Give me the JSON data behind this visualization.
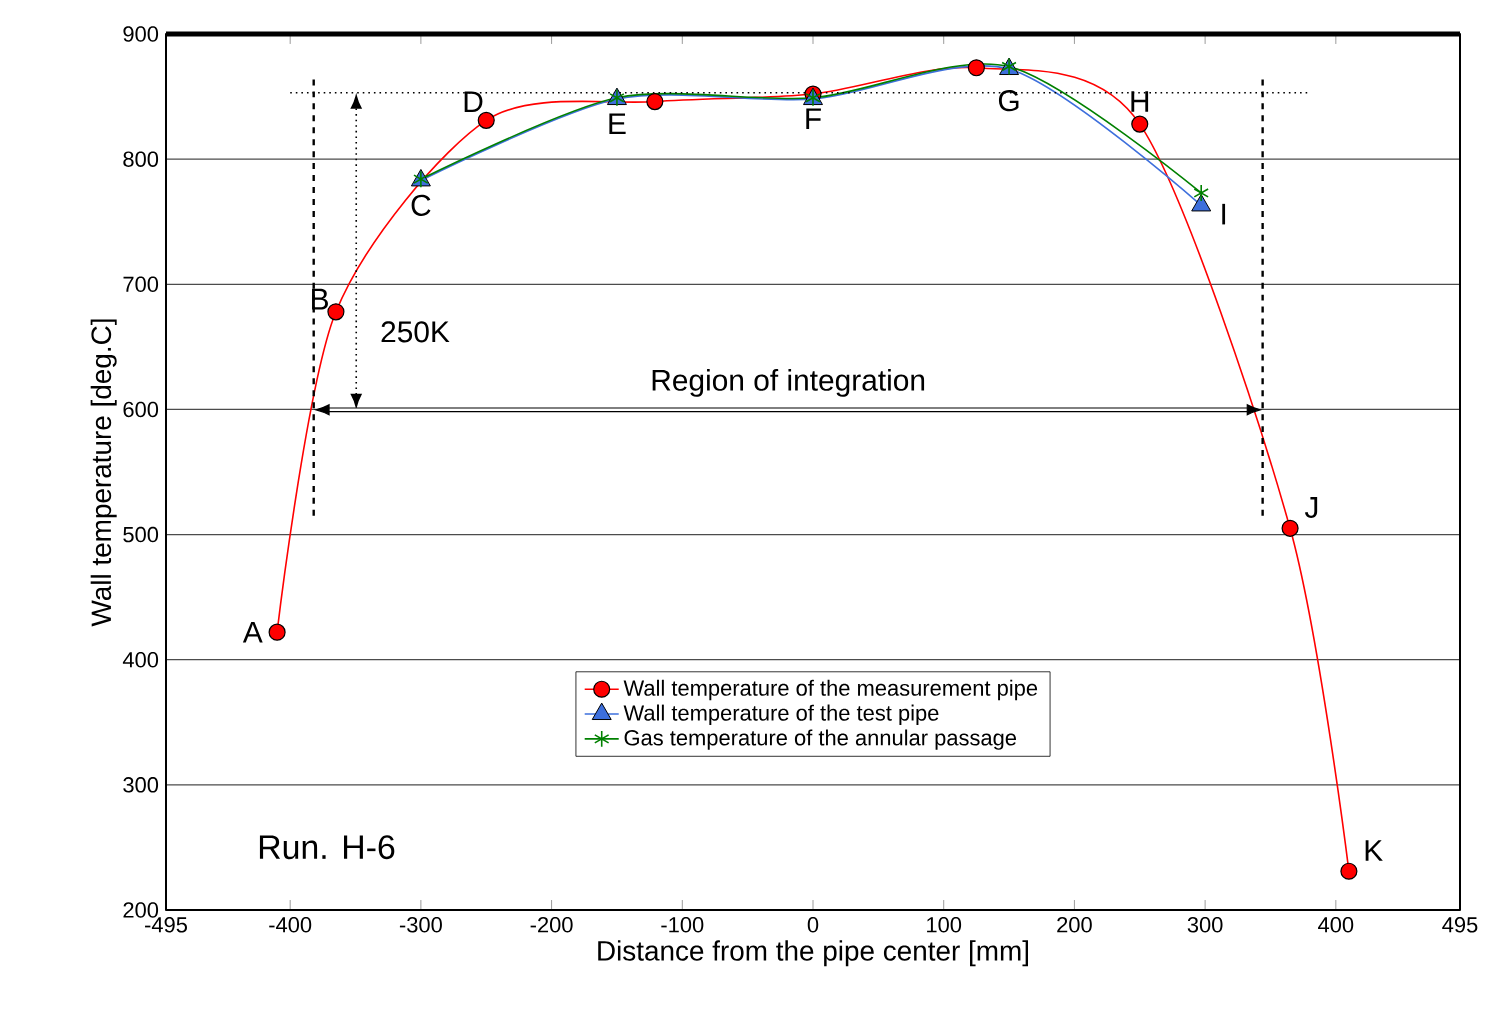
{
  "chart_data": {
    "type": "line",
    "xlabel": "Distance from the pipe center [mm]",
    "ylabel": "Wall temperature [deg.C]",
    "xlim": [
      -495,
      495
    ],
    "ylim": [
      200,
      900
    ],
    "xticks": [
      -495,
      -400,
      -300,
      -200,
      -100,
      0,
      100,
      200,
      300,
      400,
      495
    ],
    "yticks": [
      200,
      300,
      400,
      500,
      600,
      700,
      800,
      900
    ],
    "grid": "y",
    "legend": "bottom",
    "line_style": "solid",
    "series": [
      {
        "name": "Wall temperature of the measurement pipe",
        "color": "#ff0000",
        "marker": "circle",
        "x": [
          -410,
          -365,
          -250,
          -121,
          0,
          125,
          250,
          365,
          410
        ],
        "values": [
          422,
          678,
          831,
          846,
          852,
          873,
          828,
          505,
          231
        ]
      },
      {
        "name": "Wall temperature of the test pipe",
        "color": "#3d6fdc",
        "marker": "triangle",
        "x": [
          -300,
          -150,
          0,
          150,
          297
        ],
        "values": [
          783,
          848,
          848,
          872,
          763
        ]
      },
      {
        "name": "Gas temperature of the annular passage",
        "color": "#008000",
        "marker": "cross",
        "x": [
          -300,
          -150,
          0,
          150,
          297
        ],
        "values": [
          784,
          849,
          849,
          874,
          773
        ]
      }
    ],
    "ref_lines": [
      {
        "axis": "x",
        "value": -382,
        "line_style": "dashed",
        "color": "#000000"
      },
      {
        "axis": "x",
        "value": 344,
        "line_style": "dashed",
        "color": "#000000"
      },
      {
        "axis": "y",
        "value": 853,
        "line_style": "dotted",
        "color": "#000000"
      }
    ],
    "annotations": [
      {
        "text": "A",
        "x": -410,
        "y": 422
      },
      {
        "text": "B",
        "x": -365,
        "y": 678
      },
      {
        "text": "C",
        "x": -300,
        "y": 783
      },
      {
        "text": "D",
        "x": -250,
        "y": 831
      },
      {
        "text": "E",
        "x": -150,
        "y": 848
      },
      {
        "text": "F",
        "x": 0,
        "y": 852
      },
      {
        "text": "G",
        "x": 150,
        "y": 873
      },
      {
        "text": "H",
        "x": 250,
        "y": 828
      },
      {
        "text": "I",
        "x": 297,
        "y": 763
      },
      {
        "text": "J",
        "x": 365,
        "y": 505
      },
      {
        "text": "K",
        "x": 410,
        "y": 231
      },
      "250K",
      "Region of integration",
      "Run. H-6"
    ]
  }
}
